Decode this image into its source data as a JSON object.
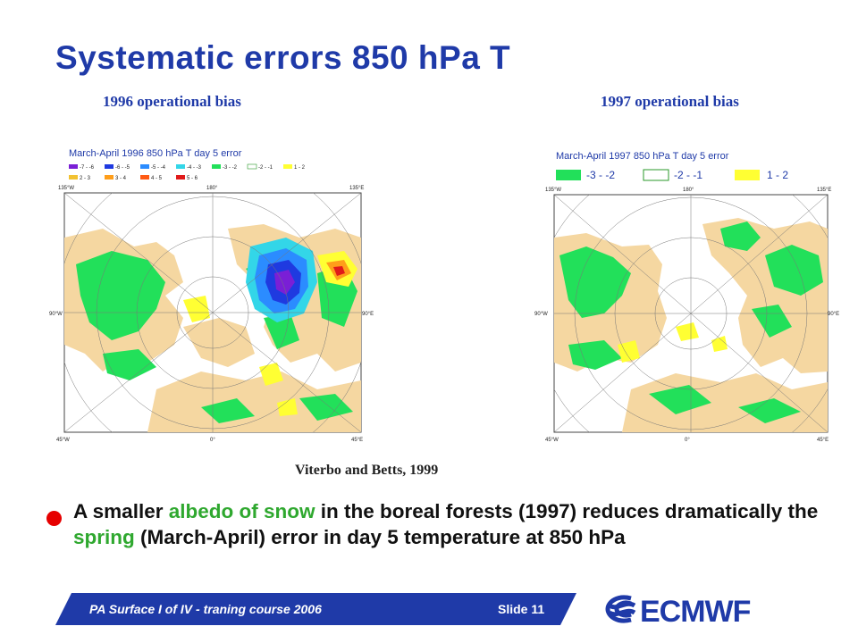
{
  "slide": {
    "title": "Systematic errors 850 hPa T",
    "caption_left": "1996 operational bias",
    "caption_right": "1997 operational bias",
    "credit": "Viterbo and Betts, 1999",
    "bullet": {
      "t1": "A smaller ",
      "h1": "albedo of snow",
      "t2": " in the boreal forests (1997) reduces dramatically the ",
      "h2": "spring",
      "t3": " (March-April) error in day 5 temperature at 850 hPa"
    },
    "footer": {
      "course": "PA Surface I of IV - traning course 2006",
      "slide_no": "Slide 11",
      "logo_text": "ECMWF"
    }
  },
  "maps": {
    "left": {
      "header": "March-April 1996 850 hPa T day 5 error",
      "legend_row1": [
        "-7 - -6",
        "-6 - -5",
        "-5 - -4",
        "-4 - -3",
        "-3 - -2",
        "-2 - -1",
        "1 - 2"
      ],
      "legend_row2": [
        "2 - 3",
        "3 - 4",
        "4 - 5",
        "5 - 6"
      ],
      "lon_labels": {
        "tl": "135°W",
        "top": "180°",
        "tr": "135°E",
        "left": "90°W",
        "right": "90°E",
        "bl": "45°W",
        "bottom": "0°",
        "br": "45°E"
      }
    },
    "right": {
      "header": "March-April 1997 850 hPa T day 5 error",
      "legend": [
        "-3 - -2",
        "-2 - -1",
        "1 - 2"
      ],
      "lon_labels": {
        "tl": "135°W",
        "top": "180°",
        "tr": "135°E",
        "left": "90°W",
        "right": "90°E",
        "bl": "45°W",
        "bottom": "0°",
        "br": "45°E"
      }
    }
  },
  "colors": {
    "title_blue": "#1f3aa8",
    "highlight_green": "#2fa82f",
    "bullet_red": "#e60000",
    "footer_blue": "#1f3aa8",
    "land": "#f5d7a1",
    "neg_error": "#22e05a",
    "pos_error": "#ffff33"
  }
}
